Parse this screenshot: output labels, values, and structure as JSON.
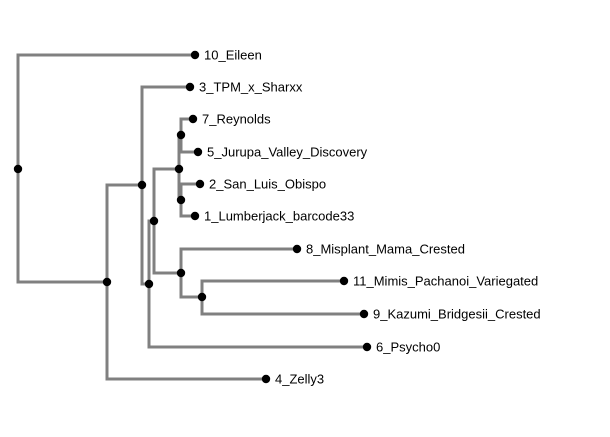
{
  "colors": {
    "branch": "#808080",
    "node": "#000000",
    "label": "#000000",
    "background": "#ffffff"
  },
  "tree": {
    "tips": [
      {
        "id": "t10",
        "label": "10_Eileen"
      },
      {
        "id": "t3",
        "label": "3_TPM_x_Sharxx"
      },
      {
        "id": "t7",
        "label": "7_Reynolds"
      },
      {
        "id": "t5",
        "label": "5_Jurupa_Valley_Discovery"
      },
      {
        "id": "t2",
        "label": "2_San_Luis_Obispo"
      },
      {
        "id": "t1",
        "label": "1_Lumberjack_barcode33"
      },
      {
        "id": "t8",
        "label": "8_Misplant_Mama_Crested"
      },
      {
        "id": "t11",
        "label": "11_Mimis_Pachanoi_Variegated"
      },
      {
        "id": "t9",
        "label": "9_Kazumi_Bridgesii_Crested"
      },
      {
        "id": "t6",
        "label": "6_Psycho0"
      },
      {
        "id": "t4",
        "label": "4_Zelly3"
      }
    ]
  }
}
